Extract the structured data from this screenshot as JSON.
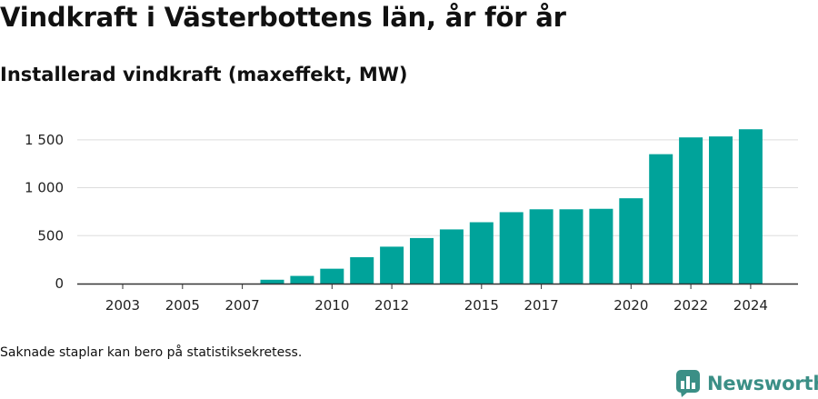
{
  "title": "Vindkraft i Västerbottens län, år för år",
  "subtitle": "Installerad vindkraft (maxeffekt, MW)",
  "note": "Saknade staplar kan bero på statistiksekretess.",
  "brand": {
    "name": "Newsworthy",
    "color": "#3b8f86",
    "icon": "newsworthy-logo-icon"
  },
  "colors": {
    "bar": "#00a39a",
    "grid": "#dddddd",
    "axis": "#333333"
  },
  "chart_data": {
    "type": "bar",
    "categories": [
      "2003",
      "2004",
      "2005",
      "2006",
      "2007",
      "2008",
      "2009",
      "2010",
      "2011",
      "2012",
      "2013",
      "2014",
      "2015",
      "2016",
      "2017",
      "2018",
      "2019",
      "2020",
      "2021",
      "2022",
      "2023",
      "2024"
    ],
    "values": [
      0,
      0,
      0,
      0,
      0,
      40,
      80,
      155,
      275,
      385,
      475,
      565,
      640,
      745,
      775,
      775,
      780,
      890,
      1350,
      1525,
      1535,
      1610
    ],
    "x_tick_labels": [
      "2003",
      "2005",
      "2007",
      "2010",
      "2012",
      "2015",
      "2017",
      "2020",
      "2022",
      "2024"
    ],
    "y_ticks": [
      0,
      500,
      1000,
      1500
    ],
    "y_tick_labels": [
      "0",
      "500",
      "1 000",
      "1 500"
    ],
    "ylim": [
      0,
      1650
    ],
    "grid": true,
    "xlabel": "",
    "ylabel": ""
  }
}
